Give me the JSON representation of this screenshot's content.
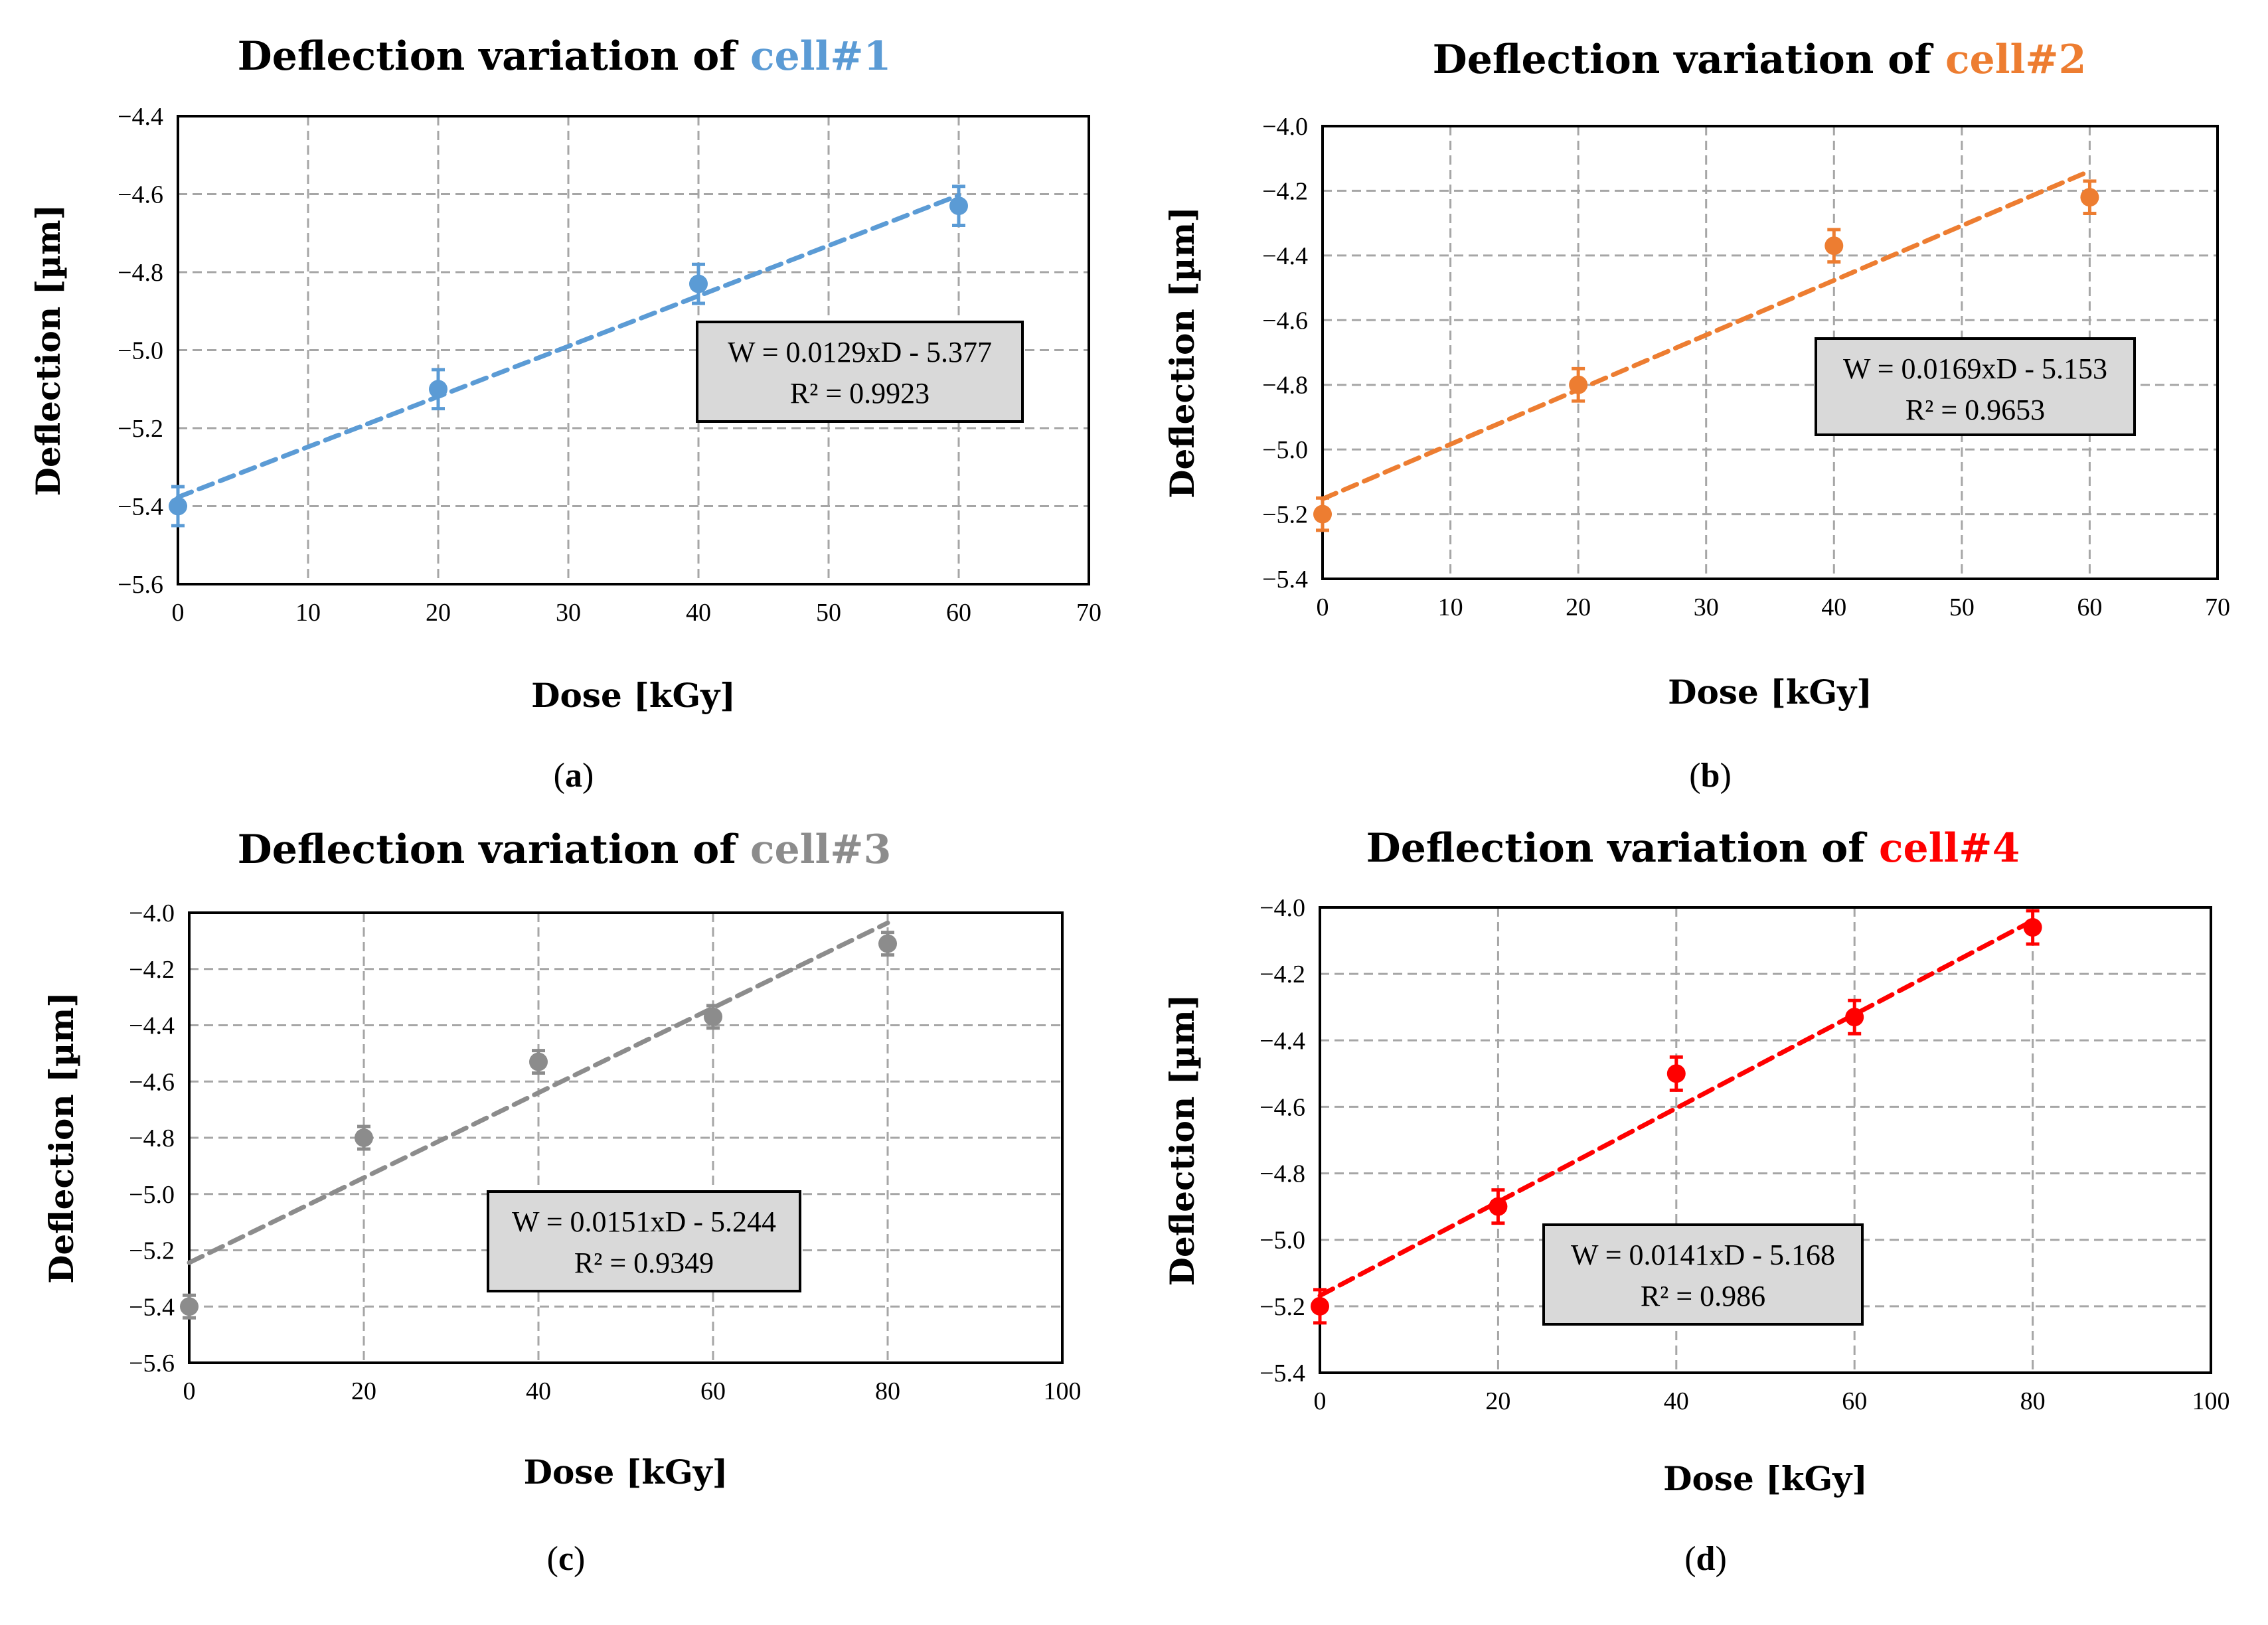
{
  "chart_data": [
    {
      "type": "scatter",
      "panel_label": "a",
      "title_prefix": "Deflection variation of ",
      "title_highlight": "cell#1",
      "xlabel": "Dose  [kGy]",
      "ylabel": "Deflection [µm]",
      "xlim": [
        0,
        70
      ],
      "ylim": [
        -5.6,
        -4.4
      ],
      "xticks": [
        "0",
        "10",
        "20",
        "30",
        "40",
        "50",
        "60",
        "70"
      ],
      "yticks": [
        "-5.6",
        "-5.4",
        "-5.2",
        "-5.0",
        "-4.8",
        "-4.6",
        "-4.4"
      ],
      "grid": true,
      "color": "#5b9bd5",
      "points": {
        "x": [
          0,
          20,
          40,
          60
        ],
        "y": [
          -5.4,
          -5.1,
          -4.83,
          -4.63
        ],
        "err": [
          0.05,
          0.05,
          0.05,
          0.05
        ]
      },
      "trendline": {
        "slope": 0.0129,
        "intercept": -5.377,
        "x_range": [
          0,
          60
        ]
      },
      "equation": "W = 0.0129xD - 5.377",
      "r2": "R² = 0.9923"
    },
    {
      "type": "scatter",
      "panel_label": "b",
      "title_prefix": "Deflection variation of ",
      "title_highlight": "cell#2",
      "xlabel": "Dose  [kGy]",
      "ylabel": "Deflection [µm]",
      "xlim": [
        0,
        70
      ],
      "ylim": [
        -5.4,
        -4.0
      ],
      "xticks": [
        "0",
        "10",
        "20",
        "30",
        "40",
        "50",
        "60",
        "70"
      ],
      "yticks": [
        "-5.4",
        "-5.2",
        "-5.0",
        "-4.8",
        "-4.6",
        "-4.4",
        "-4.2",
        "-4.0"
      ],
      "grid": true,
      "color": "#ed7d31",
      "points": {
        "x": [
          0,
          20,
          40,
          60
        ],
        "y": [
          -5.2,
          -4.8,
          -4.37,
          -4.22
        ],
        "err": [
          0.05,
          0.05,
          0.05,
          0.05
        ]
      },
      "trendline": {
        "slope": 0.0169,
        "intercept": -5.153,
        "x_range": [
          0,
          60
        ]
      },
      "equation": "W = 0.0169xD - 5.153",
      "r2": "R² = 0.9653"
    },
    {
      "type": "scatter",
      "panel_label": "c",
      "title_prefix": "Deflection variation of ",
      "title_highlight": "cell#3",
      "xlabel": "Dose  [kGy]",
      "ylabel": "Deflection [µm]",
      "xlim": [
        0,
        100
      ],
      "ylim": [
        -5.6,
        -4.0
      ],
      "xticks": [
        "0",
        "20",
        "40",
        "60",
        "80",
        "100"
      ],
      "yticks": [
        "-5.6",
        "-5.4",
        "-5.2",
        "-5.0",
        "-4.8",
        "-4.6",
        "-4.4",
        "-4.2",
        "-4.0"
      ],
      "grid": true,
      "color": "#8c8c8c",
      "points": {
        "x": [
          0,
          20,
          40,
          60,
          80
        ],
        "y": [
          -5.4,
          -4.8,
          -4.53,
          -4.37,
          -4.11
        ],
        "err": [
          0.04,
          0.04,
          0.04,
          0.04,
          0.04
        ]
      },
      "trendline": {
        "slope": 0.0151,
        "intercept": -5.244,
        "x_range": [
          0,
          80
        ]
      },
      "equation": "W = 0.0151xD - 5.244",
      "r2": "R² = 0.9349"
    },
    {
      "type": "scatter",
      "panel_label": "d",
      "title_prefix": "Deflection variation of ",
      "title_highlight": "cell#4",
      "xlabel": "Dose  [kGy]",
      "ylabel": "Deflection [µm]",
      "xlim": [
        0,
        100
      ],
      "ylim": [
        -5.4,
        -4.0
      ],
      "xticks": [
        "0",
        "20",
        "40",
        "60",
        "80",
        "100"
      ],
      "yticks": [
        "-5.4",
        "-5.2",
        "-5.0",
        "-4.8",
        "-4.6",
        "-4.4",
        "-4.2",
        "-4.0"
      ],
      "grid": true,
      "color": "#ff0000",
      "points": {
        "x": [
          0,
          20,
          40,
          60,
          80
        ],
        "y": [
          -5.2,
          -4.9,
          -4.5,
          -4.33,
          -4.06
        ],
        "err": [
          0.05,
          0.05,
          0.05,
          0.05,
          0.05
        ]
      },
      "trendline": {
        "slope": 0.0141,
        "intercept": -5.168,
        "x_range": [
          0,
          80
        ]
      },
      "equation": "W = 0.0141xD - 5.168",
      "r2": "R² = 0.986"
    }
  ]
}
